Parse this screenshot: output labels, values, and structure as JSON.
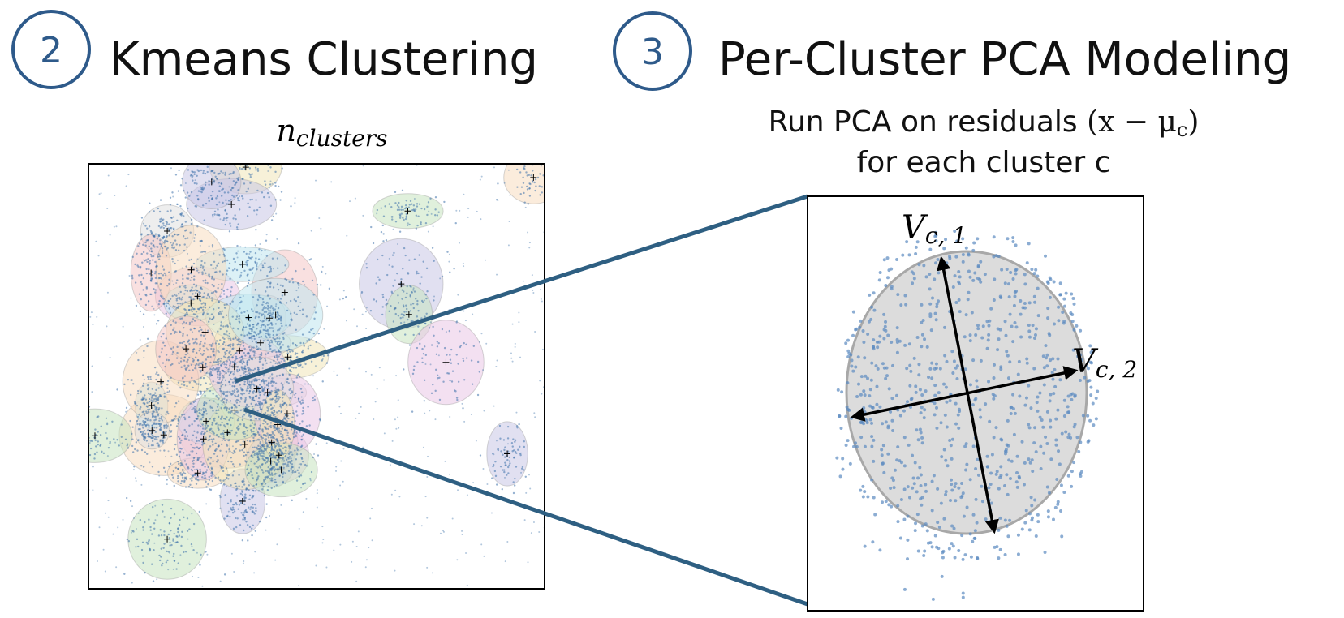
{
  "steps": [
    {
      "number": "2",
      "title": "Kmeans Clustering"
    },
    {
      "number": "3",
      "title": "Per-Cluster PCA Modeling"
    }
  ],
  "kmeans": {
    "label": "n",
    "label_sub": "clusters"
  },
  "pca": {
    "line1": "Run PCA on residuals ",
    "expr": "(x − μ",
    "expr_sub": "c",
    "expr_close": ")",
    "line2": "for each cluster c",
    "axis1": "V",
    "axis1_sub": "c, 1",
    "axis2": "V",
    "axis2_sub": "c, 2"
  }
}
